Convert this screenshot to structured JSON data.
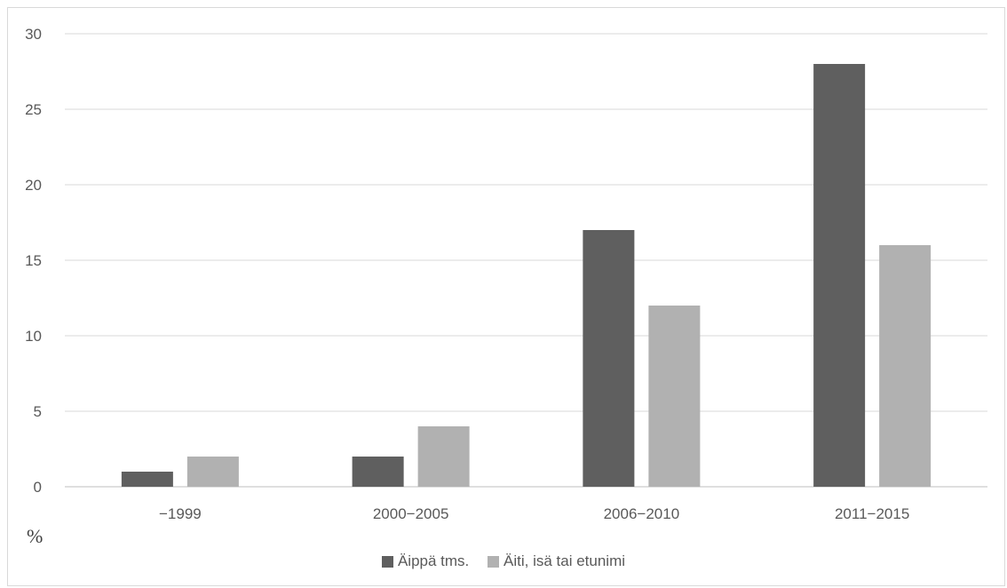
{
  "chart_data": {
    "type": "bar",
    "categories": [
      "−1999",
      "2000−2005",
      "2006−2010",
      "2011−2015"
    ],
    "series": [
      {
        "name": "Äippä tms.",
        "values": [
          1,
          2,
          17,
          28
        ],
        "color": "#5f5f5f"
      },
      {
        "name": "Äiti, isä tai etunimi",
        "values": [
          2,
          4,
          12,
          16
        ],
        "color": "#b1b1b1"
      }
    ],
    "title": "",
    "xlabel": "",
    "ylabel": "%",
    "ylim": [
      0,
      30
    ],
    "yticks": [
      0,
      5,
      10,
      15,
      20,
      25,
      30
    ],
    "grid": true,
    "legend_position": "bottom"
  }
}
